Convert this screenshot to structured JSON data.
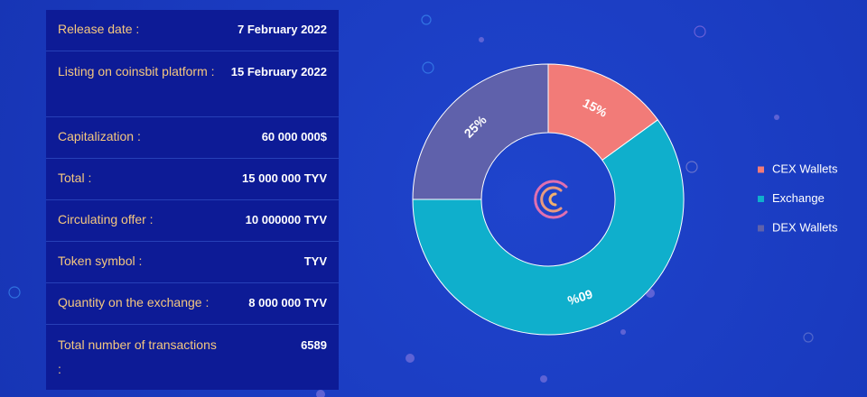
{
  "table": {
    "rows": [
      [
        "Release date :",
        "7 February 2022"
      ],
      [
        "Listing on coinsbit platform :",
        "15 February 2022"
      ],
      [
        "Capitalization :",
        "60 000 000$"
      ],
      [
        "Total :",
        "15 000 000 TYV"
      ],
      [
        "Circulating offer :",
        "10 000000 TYV"
      ],
      [
        "Token symbol :",
        "TYV"
      ],
      [
        "Quantity on the exchange :",
        "8 000 000 TYV"
      ],
      [
        "Total number of transactions :",
        "6589"
      ]
    ]
  },
  "chart_data": {
    "type": "donut",
    "categories": [
      "CEX Wallets",
      "Exchange",
      "DEX Wallets"
    ],
    "values": [
      15,
      60,
      25
    ],
    "value_labels": [
      "15%",
      "60%",
      "25%"
    ],
    "colors": [
      "#f27b78",
      "#0fafcc",
      "#5f61ab"
    ],
    "legend": "right"
  }
}
